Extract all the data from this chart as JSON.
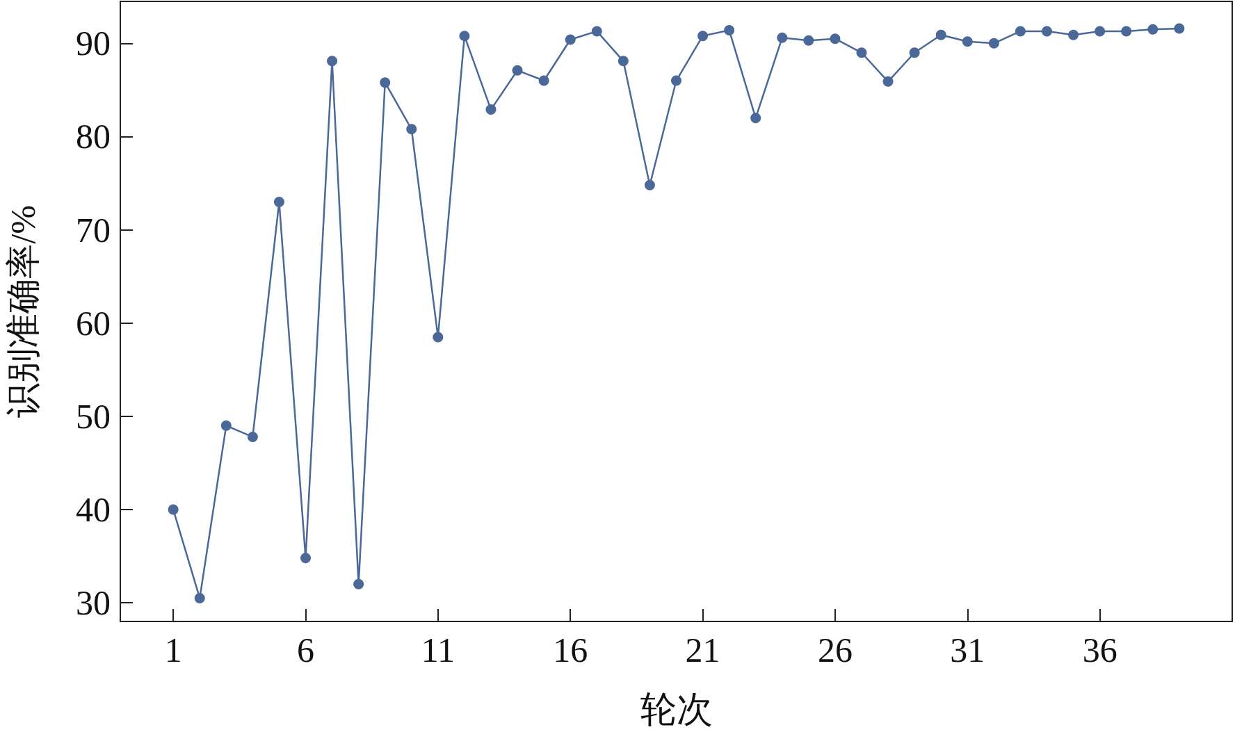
{
  "chart_data": {
    "type": "line",
    "xlabel": "轮次",
    "ylabel": "识别准确率/%",
    "x": [
      1,
      2,
      3,
      4,
      5,
      6,
      7,
      8,
      9,
      10,
      11,
      12,
      13,
      14,
      15,
      16,
      17,
      18,
      19,
      20,
      21,
      22,
      23,
      24,
      25,
      26,
      27,
      28,
      29,
      30,
      31,
      32,
      33,
      34,
      35,
      36,
      37,
      38,
      39
    ],
    "series": [
      {
        "color": "#4a6898",
        "values": [
          40,
          30.5,
          49,
          47.8,
          73,
          34.8,
          88.1,
          32,
          85.8,
          80.8,
          58.5,
          90.8,
          82.9,
          87.1,
          86,
          90.4,
          91.3,
          88.1,
          74.8,
          86,
          90.8,
          91.4,
          82,
          90.6,
          90.3,
          90.5,
          89,
          85.9,
          89,
          90.9,
          90.2,
          90,
          91.3,
          91.3,
          90.9,
          91.3,
          91.3,
          91.5,
          91.6
        ]
      }
    ],
    "xlim": [
      -1,
      41
    ],
    "xticks": [
      1,
      6,
      11,
      16,
      21,
      26,
      31,
      36
    ],
    "ylim": [
      28,
      94.5
    ],
    "yticks": [
      30,
      40,
      50,
      60,
      70,
      80,
      90
    ],
    "grid": false,
    "marker": "circle",
    "line_style": "solid"
  }
}
